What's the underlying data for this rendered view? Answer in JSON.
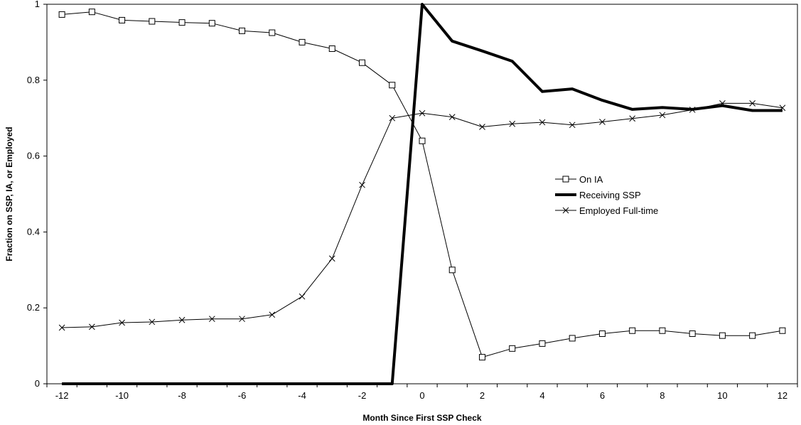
{
  "chart_data": {
    "type": "line",
    "xlabel": "Month Since First SSP Check",
    "ylabel": "Fraction on SSP, IA, or Employed",
    "xlim": [
      -12.5,
      12.5
    ],
    "ylim": [
      0,
      1
    ],
    "x": [
      -12,
      -11,
      -10,
      -9,
      -8,
      -7,
      -6,
      -5,
      -4,
      -3,
      -2,
      -1,
      0,
      1,
      2,
      3,
      4,
      5,
      6,
      7,
      8,
      9,
      10,
      11,
      12
    ],
    "x_ticks": [
      "-12",
      "-10",
      "-8",
      "-6",
      "-4",
      "-2",
      "0",
      "2",
      "4",
      "6",
      "8",
      "10",
      "12"
    ],
    "y_ticks": [
      "0",
      "0.2",
      "0.4",
      "0.6",
      "0.8",
      "1"
    ],
    "grid": false,
    "legend_position": "right-center",
    "series": [
      {
        "name": "On IA",
        "marker": "square",
        "color": "#000000",
        "values": [
          0.973,
          0.98,
          0.958,
          0.955,
          0.952,
          0.95,
          0.93,
          0.925,
          0.9,
          0.883,
          0.846,
          0.787,
          0.64,
          0.3,
          0.07,
          0.093,
          0.106,
          0.12,
          0.132,
          0.14,
          0.14,
          0.132,
          0.127,
          0.127,
          0.14
        ]
      },
      {
        "name": "Receiving SSP",
        "marker": "none",
        "color": "#000000",
        "values": [
          0,
          0,
          0,
          0,
          0,
          0,
          0,
          0,
          0,
          0,
          0,
          0,
          1.0,
          0.903,
          0.877,
          0.85,
          0.77,
          0.777,
          0.747,
          0.723,
          0.728,
          0.723,
          0.733,
          0.72,
          0.72
        ]
      },
      {
        "name": "Employed Full-time",
        "marker": "x",
        "color": "#000000",
        "values": [
          0.148,
          0.15,
          0.161,
          0.163,
          0.168,
          0.171,
          0.171,
          0.182,
          0.23,
          0.33,
          0.524,
          0.7,
          0.713,
          0.703,
          0.677,
          0.685,
          0.689,
          0.682,
          0.69,
          0.699,
          0.708,
          0.722,
          0.739,
          0.739,
          0.727
        ]
      }
    ]
  }
}
